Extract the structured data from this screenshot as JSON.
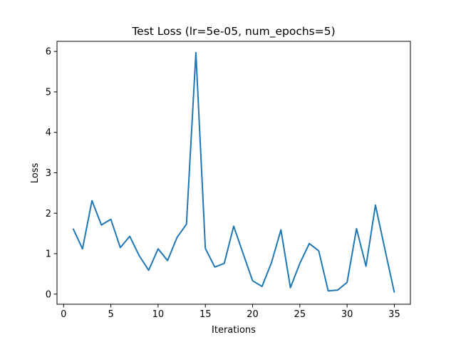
{
  "chart_data": {
    "type": "line",
    "title": "Test Loss (lr=5e-05, num_epochs=5)",
    "xlabel": "Iterations",
    "ylabel": "Loss",
    "xlim": [
      -0.7,
      36.7
    ],
    "ylim": [
      -0.25,
      6.25
    ],
    "xticks": [
      0,
      5,
      10,
      15,
      20,
      25,
      30,
      35
    ],
    "yticks": [
      0,
      1,
      2,
      3,
      4,
      5,
      6
    ],
    "grid": false,
    "legend": "none",
    "series": [
      {
        "color": "#1f77b4",
        "x": [
          1,
          2,
          3,
          4,
          5,
          6,
          7,
          8,
          9,
          10,
          11,
          12,
          13,
          14,
          15,
          16,
          17,
          18,
          19,
          20,
          21,
          22,
          23,
          24,
          25,
          26,
          27,
          28,
          29,
          30,
          31,
          32,
          33,
          34,
          35
        ],
        "values": [
          1.62,
          1.12,
          2.31,
          1.71,
          1.85,
          1.15,
          1.43,
          0.95,
          0.59,
          1.12,
          0.83,
          1.4,
          1.73,
          5.97,
          1.13,
          0.67,
          0.76,
          1.68,
          1.0,
          0.33,
          0.19,
          0.78,
          1.59,
          0.16,
          0.76,
          1.25,
          1.07,
          0.08,
          0.1,
          0.29,
          1.62,
          0.69,
          2.2,
          1.11,
          0.04
        ]
      }
    ]
  }
}
